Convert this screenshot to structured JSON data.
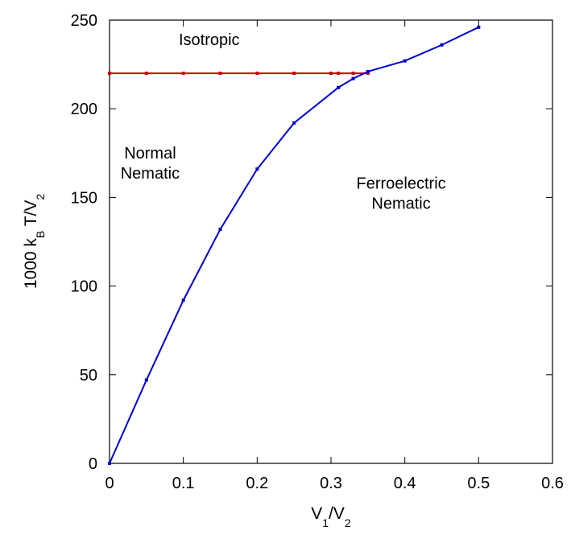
{
  "chart_data": {
    "type": "line",
    "xlabel": {
      "main": "V",
      "sub1": "1",
      "mid": "/V",
      "sub2": "2"
    },
    "ylabel": {
      "pre": "1000 k",
      "sub1": "B",
      "mid": " T/V",
      "sub2": "2"
    },
    "xlim": [
      0,
      0.6
    ],
    "ylim": [
      0,
      250
    ],
    "xticks": [
      0,
      0.1,
      0.2,
      0.3,
      0.4,
      0.5,
      0.6
    ],
    "xtick_labels": [
      "0",
      "0.1",
      "0.2",
      "0.3",
      "0.4",
      "0.5",
      "0.6"
    ],
    "yticks": [
      0,
      50,
      100,
      150,
      200,
      250
    ],
    "ytick_labels": [
      "0",
      "50",
      "100",
      "150",
      "200",
      "250"
    ],
    "grid": false,
    "series": [
      {
        "color": "#cc0000",
        "x": [
          0,
          0.05,
          0.1,
          0.15,
          0.2,
          0.25,
          0.3,
          0.31,
          0.33,
          0.35
        ],
        "y": [
          220,
          220,
          220,
          220,
          220,
          220,
          220,
          220,
          220,
          220
        ]
      },
      {
        "color": "#0000cc",
        "x": [
          0,
          0.05,
          0.1,
          0.15,
          0.2,
          0.25,
          0.31,
          0.33,
          0.35,
          0.4,
          0.45,
          0.5
        ],
        "y": [
          0,
          47,
          92,
          132,
          166,
          192,
          212,
          217,
          221,
          227,
          236,
          246
        ]
      }
    ],
    "annotations": [
      {
        "lines": [
          "Isotropic"
        ],
        "x": 0.135,
        "y": 236,
        "anchor": "middle"
      },
      {
        "lines": [
          "Normal",
          "Nematic"
        ],
        "x": 0.055,
        "y": 172,
        "anchor": "middle"
      },
      {
        "lines": [
          "Ferroelectric",
          "Nematic"
        ],
        "x": 0.395,
        "y": 155,
        "anchor": "middle"
      }
    ]
  }
}
